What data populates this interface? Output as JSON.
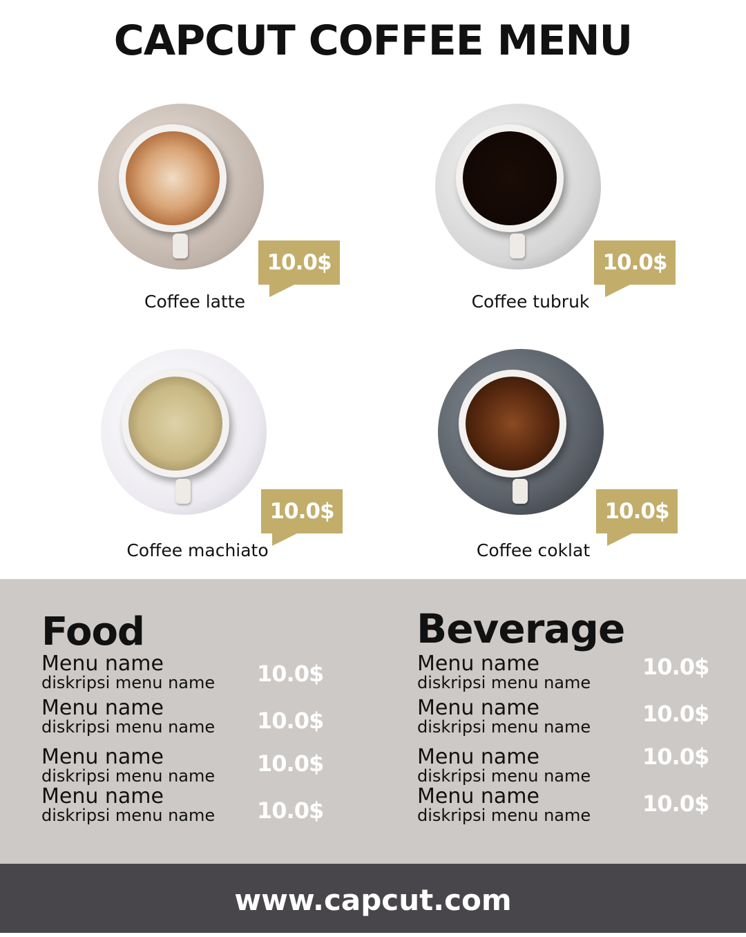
{
  "title": "CAPCUT COFFEE MENU",
  "products": [
    {
      "name": "Coffee latte",
      "price": "10.0$"
    },
    {
      "name": "Coffee tubruk",
      "price": "10.0$"
    },
    {
      "name": "Coffee machiato",
      "price": "10.0$"
    },
    {
      "name": "Coffee coklat",
      "price": "10.0$"
    }
  ],
  "food": {
    "heading": "Food",
    "items": [
      {
        "name": "Menu name",
        "desc": "diskripsi menu name",
        "price": "10.0$"
      },
      {
        "name": "Menu name",
        "desc": "diskripsi menu name",
        "price": "10.0$"
      },
      {
        "name": "Menu name",
        "desc": "diskripsi menu name",
        "price": "10.0$"
      },
      {
        "name": "Menu name",
        "desc": "diskripsi menu name",
        "price": "10.0$"
      }
    ]
  },
  "beverage": {
    "heading": "Beverage",
    "items": [
      {
        "name": "Menu name",
        "desc": "diskripsi menu name",
        "price": "10.0$"
      },
      {
        "name": "Menu name",
        "desc": "diskripsi menu name",
        "price": "10.0$"
      },
      {
        "name": "Menu name",
        "desc": "diskripsi menu name",
        "price": "10.0$"
      },
      {
        "name": "Menu name",
        "desc": "diskripsi menu name",
        "price": "10.0$"
      }
    ]
  },
  "footer": "www.capcut.com",
  "colors": {
    "accent": "#c2ad6b",
    "panel": "#cdc9c6",
    "footer": "#48464b"
  }
}
